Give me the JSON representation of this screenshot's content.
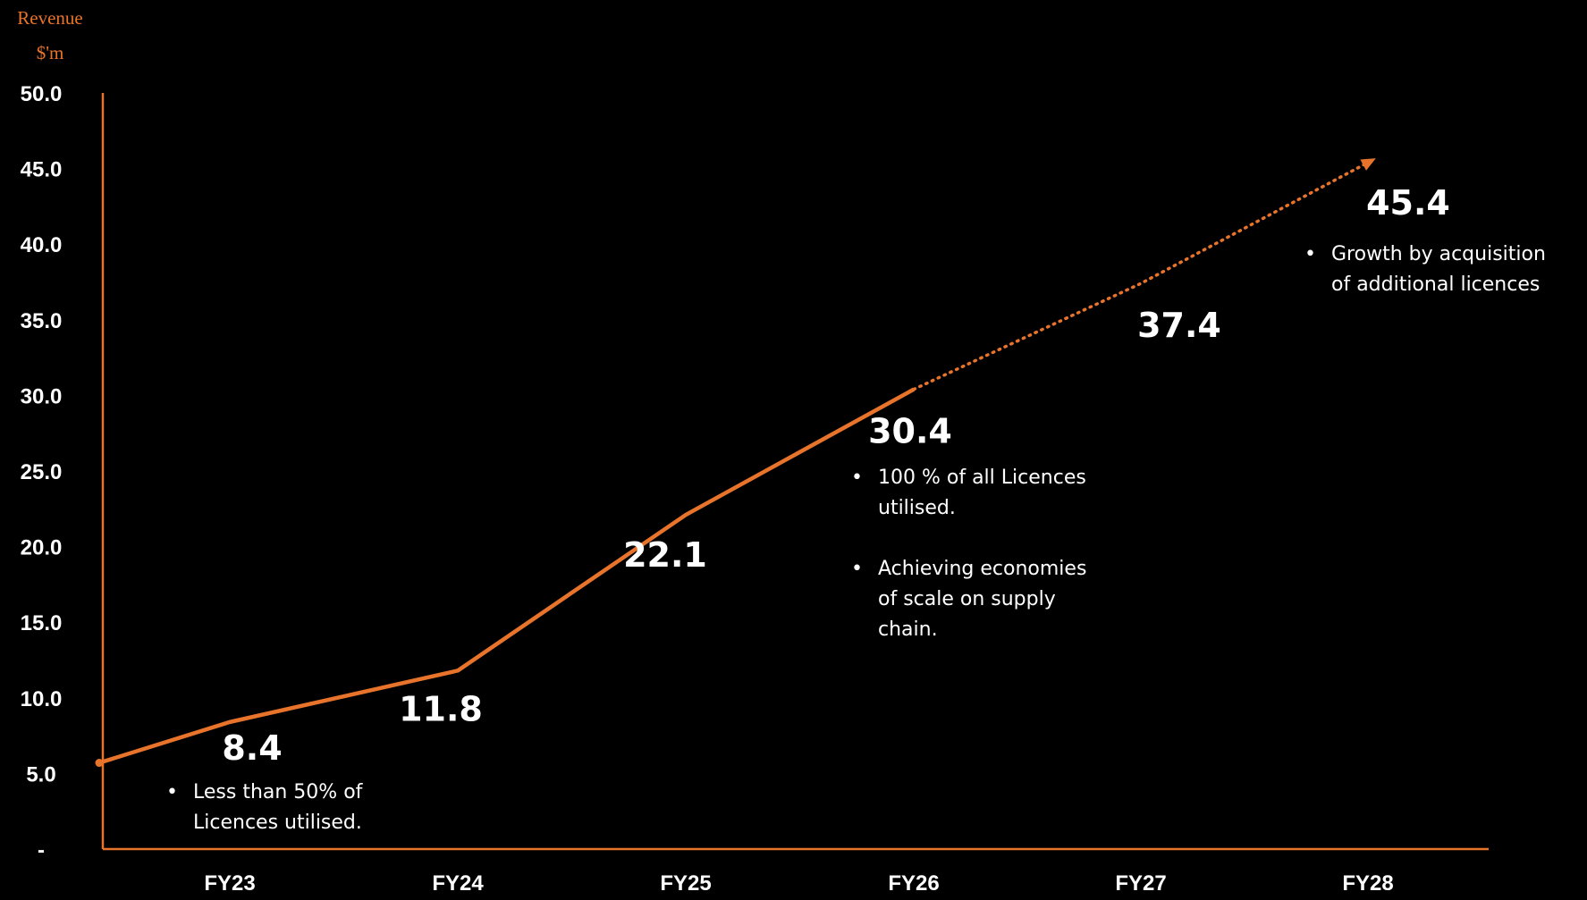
{
  "chart_data": {
    "type": "line",
    "ylabel_lines": [
      "Revenue",
      "$'m"
    ],
    "xlabel": "",
    "title": "",
    "ylim": [
      0,
      50
    ],
    "y_ticks": [
      "-",
      "5.0",
      "10.0",
      "15.0",
      "20.0",
      "25.0",
      "30.0",
      "35.0",
      "40.0",
      "45.0",
      "50.0"
    ],
    "categories": [
      "FY23",
      "FY24",
      "FY25",
      "FY26",
      "FY27",
      "FY28"
    ],
    "start_value": 5.7,
    "values": [
      8.4,
      11.8,
      22.1,
      30.4,
      37.4,
      45.4
    ],
    "data_labels": [
      "8.4",
      "11.8",
      "22.1",
      "30.4",
      "37.4",
      "45.4"
    ],
    "actual_through": "FY26",
    "projected_from": "FY26",
    "grid": false,
    "colors": {
      "line": "#e8732a",
      "background": "#000000",
      "text": "#ffffff"
    },
    "annotations": [
      {
        "anchor": "FY23",
        "bullets": [
          [
            "Less than 50% of",
            "Licences utilised."
          ]
        ]
      },
      {
        "anchor": "FY26",
        "bullets": [
          [
            "100 % of all Licences",
            "utilised."
          ],
          [
            "Achieving economies",
            "of scale on supply",
            "chain."
          ]
        ]
      },
      {
        "anchor": "FY28",
        "bullets": [
          [
            "Growth by acquisition",
            "of additional licences"
          ]
        ]
      }
    ]
  }
}
